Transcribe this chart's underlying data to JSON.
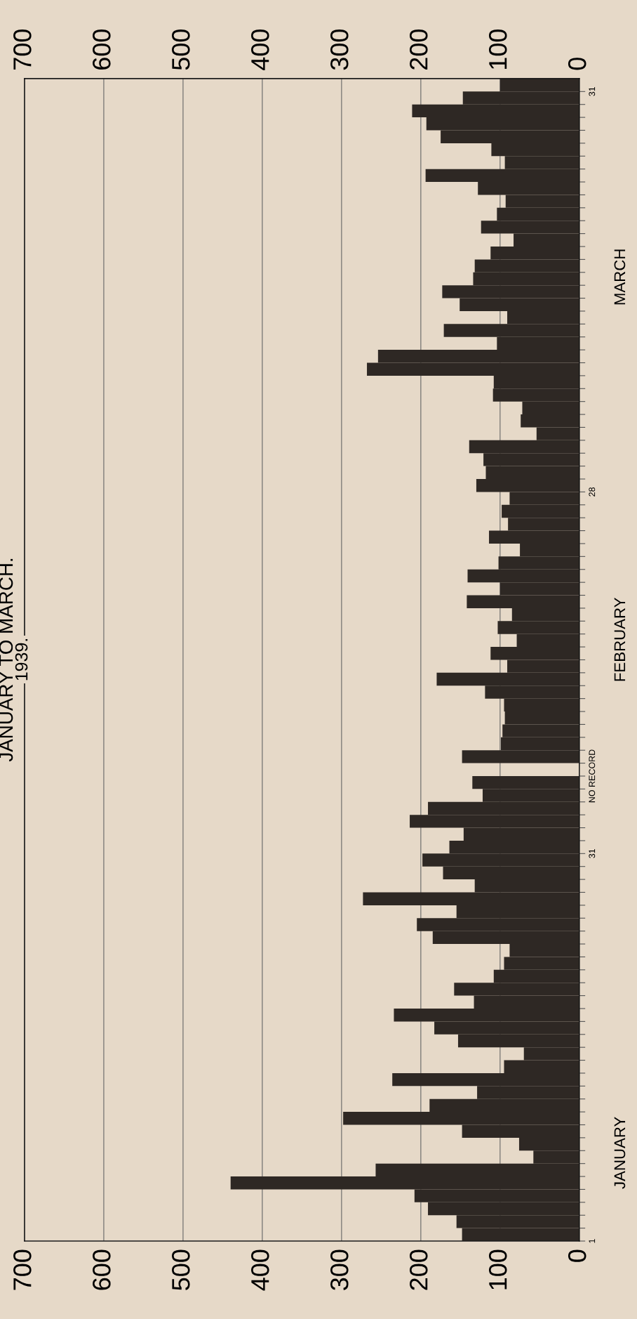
{
  "chart_data": {
    "type": "bar",
    "orientation": "horizontal",
    "title": "JANUARY TO MARCH.",
    "subtitle": "1939.",
    "categories": [
      "31",
      null,
      null,
      null,
      null,
      null,
      null,
      null,
      null,
      null,
      null,
      null,
      null,
      null,
      null,
      null,
      null,
      null,
      null,
      null,
      null,
      null,
      null,
      null,
      null,
      null,
      null,
      null,
      null,
      null,
      null,
      "28",
      null,
      null,
      null,
      null,
      null,
      null,
      null,
      null,
      null,
      null,
      null,
      null,
      null,
      null,
      null,
      null,
      null,
      null,
      null,
      null,
      null,
      "NO RECORD",
      null,
      null,
      null,
      null,
      null,
      "31",
      null,
      null,
      null,
      null,
      null,
      null,
      null,
      null,
      null,
      null,
      null,
      null,
      null,
      null,
      null,
      null,
      null,
      null,
      null,
      null,
      null,
      null,
      null,
      null,
      null,
      null,
      null,
      null,
      null,
      "1"
    ],
    "values": [
      100,
      147,
      211,
      193,
      175,
      111,
      94,
      194,
      128,
      93,
      104,
      124,
      83,
      112,
      132,
      134,
      173,
      151,
      91,
      171,
      104,
      254,
      268,
      108,
      109,
      72,
      74,
      54,
      139,
      121,
      118,
      130,
      88,
      98,
      90,
      114,
      75,
      102,
      141,
      100,
      142,
      85,
      103,
      79,
      112,
      91,
      180,
      119,
      95,
      94,
      97,
      99,
      148,
      null,
      135,
      122,
      191,
      214,
      146,
      164,
      198,
      172,
      132,
      273,
      155,
      205,
      185,
      88,
      95,
      108,
      158,
      133,
      234,
      183,
      153,
      70,
      95,
      236,
      129,
      189,
      298,
      148,
      76,
      58,
      257,
      440,
      208,
      191,
      155,
      148
    ],
    "color": "#2e2824",
    "xlim": [
      700,
      0
    ],
    "xticks": [
      0,
      100,
      200,
      300,
      400,
      500,
      600,
      700
    ],
    "x2lim": [
      700,
      0
    ],
    "x2ticks": [
      0,
      100,
      200,
      300,
      400,
      500,
      600,
      700
    ],
    "grid": "x",
    "annotations": [
      "MARCH",
      "FEBRUARY",
      "JANUARY"
    ]
  }
}
